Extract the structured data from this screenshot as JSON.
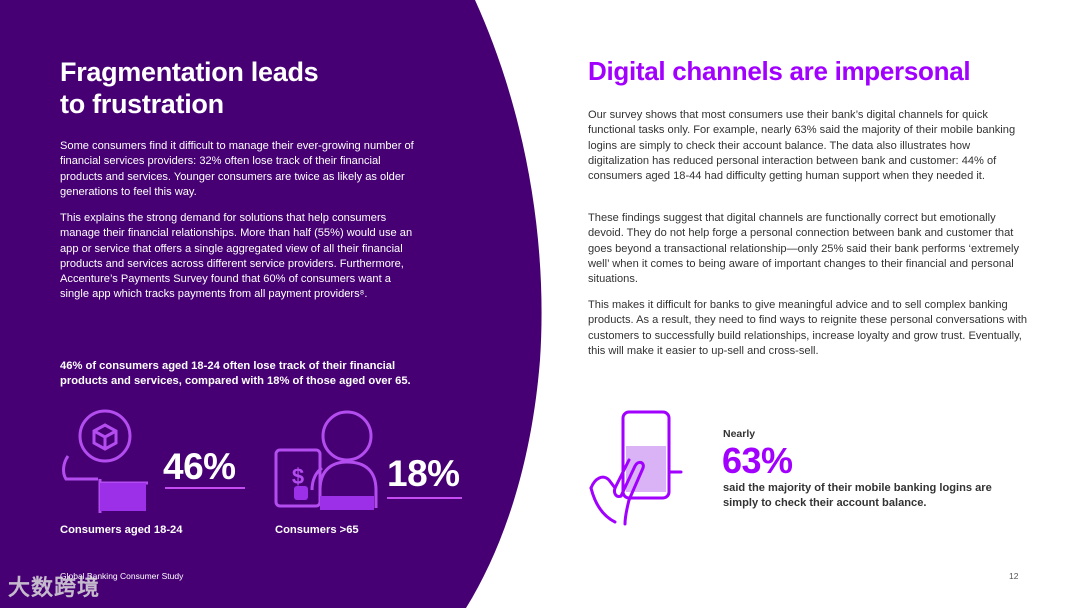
{
  "left": {
    "title_line1": "Fragmentation leads",
    "title_line2": "to frustration",
    "paragraph1": "Some consumers find it difficult to manage their ever-growing number of financial services providers: 32% often lose track of their financial products and services. Younger consumers are twice as likely as older generations to feel this way.",
    "paragraph2": "This explains the strong demand for solutions that help consumers manage their financial relationships. More than half (55%) would use an app or service that offers a single aggregated view of all their financial products and services across different service providers. Furthermore, Accenture’s Payments Survey found that 60% of consumers want a single app which tracks payments from all payment providers⁸.",
    "highlight": "46% of consumers aged 18-24 often lose track of their financial products and services, compared with 18% of those aged over 65.",
    "stats": [
      {
        "value": "46%",
        "percent": 46,
        "caption": "Consumers aged 18-24",
        "icon": "person-with-box-icon"
      },
      {
        "value": "18%",
        "percent": 18,
        "caption": "Consumers >65",
        "icon": "person-with-dollar-icon"
      }
    ]
  },
  "right": {
    "title": "Digital channels are impersonal",
    "paragraph1": "Our survey shows that most consumers use their bank’s digital channels for quick functional tasks only. For example, nearly 63% said the majority of their mobile banking logins are simply to check their account balance. The data also illustrates how digitalization has reduced personal interaction between bank and customer: 44% of consumers aged 18-44 had difficulty getting human support when they needed it.",
    "paragraph2": "These findings suggest that digital channels are functionally correct but emotionally devoid. They do not help forge a personal connection between bank and customer that goes beyond a transactional relationship—only 25% said their bank performs ‘extremely well’ when it comes to being aware of important changes to their financial and personal situations.",
    "paragraph3": "This makes it difficult for banks to give meaningful advice and to sell complex banking products. As a result, they need to find ways to reignite these personal conversations with customers to successfully build relationships, increase loyalty and grow trust. Eventually, this will make it easier to up-sell and cross-sell.",
    "stat": {
      "prefix": "Nearly",
      "value": "63%",
      "caption": "said the majority of their mobile banking logins are simply to check their account balance.",
      "icon": "hand-phone-icon"
    }
  },
  "footer": {
    "source": "Global Banking Consumer Study",
    "page_number": "12",
    "watermark": "大数跨境"
  },
  "colors": {
    "panel": "#460073",
    "accent": "#a100ff",
    "icon_stroke": "#b44df0",
    "icon_fill": "#9b30e8"
  }
}
